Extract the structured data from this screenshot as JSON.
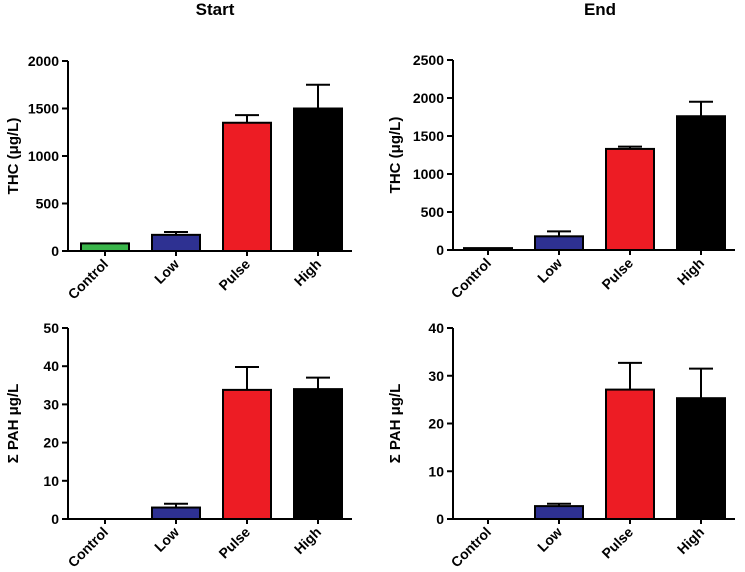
{
  "column_titles": [
    "Start",
    "End"
  ],
  "colors": {
    "Control": "#3ab54a",
    "Low": "#2e3192",
    "Pulse": "#ed1c24",
    "High": "#000000",
    "axis": "#000000"
  },
  "chart_data": [
    {
      "type": "bar",
      "title": "Start",
      "ylabel": "THC (μg/L)",
      "categories": [
        "Control",
        "Low",
        "Pulse",
        "High"
      ],
      "values": [
        80,
        170,
        1350,
        1500
      ],
      "errors": [
        0,
        30,
        80,
        250
      ],
      "ylim": [
        0,
        2000
      ],
      "yticks": [
        0,
        500,
        1000,
        1500,
        2000
      ]
    },
    {
      "type": "bar",
      "title": "End",
      "ylabel": "THC (μg/L)",
      "categories": [
        "Control",
        "Low",
        "Pulse",
        "High"
      ],
      "values": [
        25,
        180,
        1330,
        1760
      ],
      "errors": [
        0,
        65,
        30,
        190
      ],
      "ylim": [
        0,
        2500
      ],
      "yticks": [
        0,
        500,
        1000,
        1500,
        2000,
        2500
      ]
    },
    {
      "type": "bar",
      "title": "Start",
      "ylabel": "Σ PAH μg/L",
      "categories": [
        "Control",
        "Low",
        "Pulse",
        "High"
      ],
      "values": [
        0,
        3,
        33.8,
        34
      ],
      "errors": [
        0,
        1,
        6,
        3
      ],
      "ylim": [
        0,
        50
      ],
      "yticks": [
        0,
        10,
        20,
        30,
        40,
        50
      ]
    },
    {
      "type": "bar",
      "title": "End",
      "ylabel": "Σ PAH μg/L",
      "categories": [
        "Control",
        "Low",
        "Pulse",
        "High"
      ],
      "values": [
        0,
        2.7,
        27.1,
        25.3
      ],
      "errors": [
        0,
        0.5,
        5.6,
        6.2
      ],
      "ylim": [
        0,
        40
      ],
      "yticks": [
        0,
        10,
        20,
        30,
        40
      ]
    }
  ]
}
